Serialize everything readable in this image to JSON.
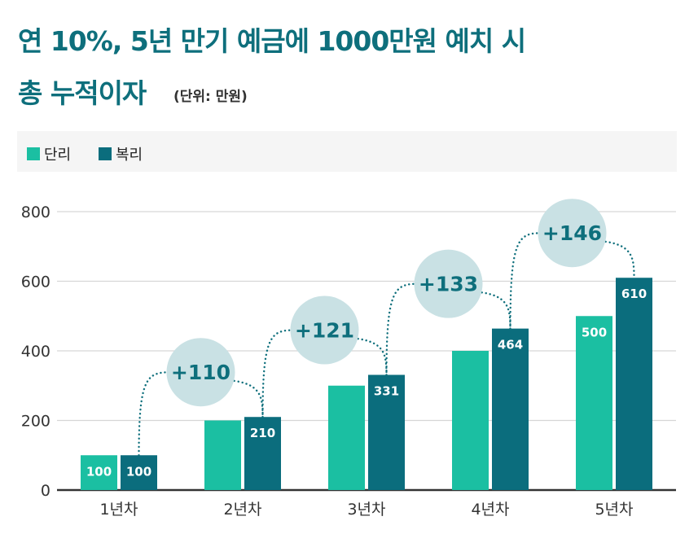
{
  "title": {
    "line1": "연 10%, 5년 만기 예금에 1000만원 예치 시",
    "line2": "총 누적이자",
    "unit": "(단위: 만원)"
  },
  "colors": {
    "simple": "#1bbfa2",
    "compound": "#0b6d7d",
    "bubble": "#c9e1e4",
    "accent_text": "#0e6f7c",
    "grid": "#d6d6d6",
    "axis": "#333333"
  },
  "chart_data": {
    "type": "bar",
    "categories": [
      "1년차",
      "2년차",
      "3년차",
      "4년차",
      "5년차"
    ],
    "series": [
      {
        "name": "단리",
        "values": [
          100,
          200,
          300,
          400,
          500
        ],
        "labels": [
          "100",
          "",
          "",
          "",
          "500"
        ]
      },
      {
        "name": "복리",
        "values": [
          100,
          210,
          331,
          464,
          610
        ],
        "labels": [
          "100",
          "210",
          "331",
          "464",
          "610"
        ]
      }
    ],
    "increments": [
      "+110",
      "+121",
      "+133",
      "+146"
    ],
    "ylim": [
      0,
      800
    ],
    "yticks": [
      "0",
      "200",
      "400",
      "600",
      "800"
    ],
    "grid": true,
    "legend_position": "top"
  }
}
